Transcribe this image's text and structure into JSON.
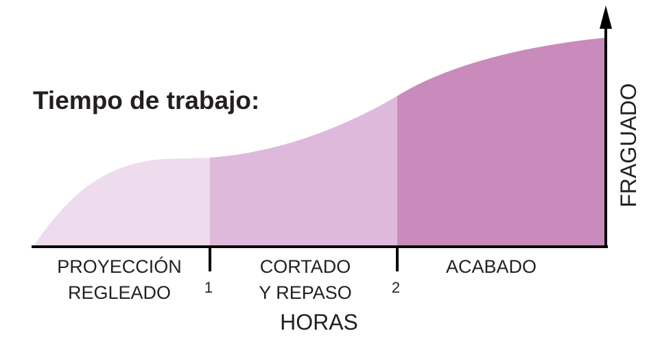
{
  "title": "Tiempo de trabajo:",
  "axes": {
    "x_label": "HORAS",
    "y_label": "FRAGUADO",
    "ticks": [
      "1",
      "2"
    ]
  },
  "stages": [
    {
      "line1": "PROYECCIÓN",
      "line2": "REGLEADO",
      "color": "#eedcee"
    },
    {
      "line1": "CORTADO",
      "line2": "Y REPASO",
      "color": "#dfb9db"
    },
    {
      "line1": "ACABADO",
      "line2": "",
      "color": "#c98bbc"
    }
  ],
  "colors": {
    "axis": "#000000",
    "text": "#231f20"
  }
}
